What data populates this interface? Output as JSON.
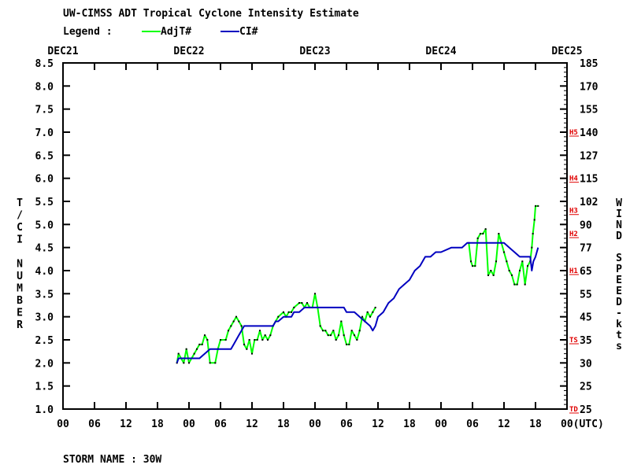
{
  "header": {
    "title": "UW-CIMSS ADT Tropical Cyclone Intensity Estimate",
    "legend_label": "Legend :",
    "storm_name": "STORM NAME : 30W"
  },
  "colors": {
    "background": "#ffffff",
    "axes": "#000000",
    "adjt_series": "#00ff00",
    "ci_series": "#0000c0",
    "category_labels": "#e00000"
  },
  "chart_data": {
    "type": "line",
    "title": "UW-CIMSS ADT Tropical Cyclone Intensity Estimate",
    "ylabel": "T/CI NUMBER",
    "y2label": "WIND SPEED-kts",
    "xlabel": "(UTC)",
    "x_unit": "hours after DEC21 00 UTC",
    "xlim": [
      0,
      96
    ],
    "ylim": [
      1.0,
      8.5
    ],
    "x_ticks": [
      0,
      6,
      12,
      18,
      24,
      30,
      36,
      42,
      48,
      54,
      60,
      66,
      72,
      78,
      84,
      90,
      96
    ],
    "x_tick_labels": [
      "00",
      "06",
      "12",
      "18",
      "00",
      "06",
      "12",
      "18",
      "00",
      "06",
      "12",
      "18",
      "00",
      "06",
      "12",
      "18",
      "00(UTC)"
    ],
    "date_labels": [
      {
        "x": 0,
        "label": "DEC21"
      },
      {
        "x": 24,
        "label": "DEC22"
      },
      {
        "x": 48,
        "label": "DEC23"
      },
      {
        "x": 72,
        "label": "DEC24"
      },
      {
        "x": 96,
        "label": "DEC25"
      }
    ],
    "y_ticks": [
      1.0,
      1.5,
      2.0,
      2.5,
      3.0,
      3.5,
      4.0,
      4.5,
      5.0,
      5.5,
      6.0,
      6.5,
      7.0,
      7.5,
      8.0,
      8.5
    ],
    "y_tick_labels": [
      "1.0",
      "1.5",
      "2.0",
      "2.5",
      "3.0",
      "3.5",
      "4.0",
      "4.5",
      "5.0",
      "5.5",
      "6.0",
      "6.5",
      "7.0",
      "7.5",
      "8.0",
      "8.5"
    ],
    "y2_tick_labels": [
      "25",
      "25",
      "30",
      "35",
      "45",
      "55",
      "65",
      "77",
      "90",
      "102",
      "115",
      "127",
      "140",
      "155",
      "170",
      "185"
    ],
    "category_labels": [
      {
        "y": 1.0,
        "label": "TD"
      },
      {
        "y": 2.5,
        "label": "TS"
      },
      {
        "y": 4.0,
        "label": "H1"
      },
      {
        "y": 4.8,
        "label": "H2"
      },
      {
        "y": 5.3,
        "label": "H3"
      },
      {
        "y": 6.0,
        "label": "H4"
      },
      {
        "y": 7.0,
        "label": "H5"
      }
    ],
    "grid": false,
    "legend_position": "top-left",
    "series": [
      {
        "name": "AdjT#",
        "color": "#00ff00",
        "segments": [
          [
            [
              21.7,
              2.0
            ],
            [
              22.0,
              2.2
            ],
            [
              22.5,
              2.1
            ],
            [
              23.0,
              2.0
            ],
            [
              23.5,
              2.3
            ],
            [
              24.0,
              2.0
            ],
            [
              24.5,
              2.1
            ],
            [
              25.0,
              2.2
            ],
            [
              25.5,
              2.3
            ],
            [
              26.0,
              2.4
            ],
            [
              26.5,
              2.4
            ],
            [
              27.0,
              2.6
            ],
            [
              27.5,
              2.5
            ],
            [
              28.0,
              2.0
            ],
            [
              29.0,
              2.0
            ],
            [
              29.5,
              2.3
            ],
            [
              30.0,
              2.5
            ],
            [
              31.0,
              2.5
            ],
            [
              31.5,
              2.7
            ],
            [
              32.0,
              2.8
            ],
            [
              32.5,
              2.9
            ],
            [
              33.0,
              3.0
            ],
            [
              33.5,
              2.9
            ],
            [
              34.0,
              2.8
            ],
            [
              34.5,
              2.4
            ],
            [
              35.0,
              2.3
            ],
            [
              35.5,
              2.5
            ],
            [
              36.0,
              2.2
            ],
            [
              36.5,
              2.5
            ],
            [
              37.0,
              2.5
            ],
            [
              37.5,
              2.7
            ],
            [
              38.0,
              2.5
            ],
            [
              38.5,
              2.6
            ],
            [
              39.0,
              2.5
            ],
            [
              39.5,
              2.6
            ],
            [
              40.0,
              2.8
            ],
            [
              40.5,
              2.9
            ],
            [
              41.0,
              3.0
            ],
            [
              42.0,
              3.1
            ],
            [
              42.5,
              3.0
            ],
            [
              43.0,
              3.1
            ],
            [
              43.5,
              3.1
            ],
            [
              44.0,
              3.2
            ],
            [
              45.0,
              3.3
            ],
            [
              45.5,
              3.3
            ],
            [
              46.0,
              3.2
            ],
            [
              46.5,
              3.3
            ],
            [
              47.0,
              3.2
            ],
            [
              47.5,
              3.2
            ],
            [
              48.0,
              3.5
            ],
            [
              48.5,
              3.2
            ],
            [
              49.0,
              2.8
            ],
            [
              49.5,
              2.7
            ],
            [
              50.0,
              2.7
            ],
            [
              50.5,
              2.6
            ],
            [
              51.0,
              2.6
            ],
            [
              51.5,
              2.7
            ],
            [
              52.0,
              2.5
            ],
            [
              52.5,
              2.6
            ],
            [
              53.0,
              2.9
            ],
            [
              53.5,
              2.6
            ],
            [
              54.0,
              2.4
            ],
            [
              54.5,
              2.4
            ],
            [
              55.0,
              2.7
            ],
            [
              55.5,
              2.6
            ],
            [
              56.0,
              2.5
            ],
            [
              56.5,
              2.7
            ],
            [
              57.0,
              3.0
            ],
            [
              57.5,
              2.9
            ],
            [
              58.0,
              3.1
            ],
            [
              58.5,
              3.0
            ],
            [
              59.0,
              3.1
            ],
            [
              59.5,
              3.2
            ]
          ],
          [
            [
              77.3,
              4.6
            ],
            [
              77.7,
              4.2
            ],
            [
              78.0,
              4.1
            ],
            [
              78.5,
              4.1
            ],
            [
              79.0,
              4.7
            ],
            [
              79.5,
              4.8
            ],
            [
              80.0,
              4.8
            ],
            [
              80.5,
              4.9
            ],
            [
              81.0,
              3.9
            ],
            [
              81.5,
              4.0
            ],
            [
              82.0,
              3.9
            ],
            [
              82.5,
              4.2
            ],
            [
              83.0,
              4.8
            ],
            [
              83.5,
              4.6
            ],
            [
              84.0,
              4.4
            ],
            [
              84.5,
              4.2
            ],
            [
              85.0,
              4.0
            ],
            [
              85.5,
              3.9
            ],
            [
              86.0,
              3.7
            ],
            [
              86.5,
              3.7
            ],
            [
              87.0,
              4.0
            ],
            [
              87.5,
              4.2
            ],
            [
              88.0,
              3.7
            ],
            [
              88.5,
              4.1
            ],
            [
              89.0,
              4.2
            ],
            [
              89.3,
              4.5
            ],
            [
              89.5,
              4.8
            ],
            [
              89.8,
              5.1
            ],
            [
              90.0,
              5.4
            ],
            [
              90.5,
              5.4
            ]
          ]
        ]
      },
      {
        "name": "CI#",
        "color": "#0000c0",
        "segments": [
          [
            [
              21.7,
              2.0
            ],
            [
              22.0,
              2.1
            ],
            [
              26.0,
              2.1
            ],
            [
              27.0,
              2.2
            ],
            [
              28.0,
              2.3
            ],
            [
              32.0,
              2.3
            ],
            [
              32.5,
              2.4
            ],
            [
              33.0,
              2.5
            ],
            [
              33.5,
              2.6
            ],
            [
              34.0,
              2.7
            ],
            [
              34.5,
              2.8
            ],
            [
              39.0,
              2.8
            ],
            [
              40.0,
              2.8
            ],
            [
              40.5,
              2.9
            ],
            [
              41.0,
              2.9
            ],
            [
              42.0,
              3.0
            ],
            [
              43.5,
              3.0
            ],
            [
              44.0,
              3.1
            ],
            [
              45.0,
              3.1
            ],
            [
              46.0,
              3.2
            ],
            [
              48.0,
              3.2
            ],
            [
              53.5,
              3.2
            ],
            [
              54.0,
              3.1
            ],
            [
              55.5,
              3.1
            ],
            [
              56.5,
              3.0
            ],
            [
              57.5,
              2.9
            ],
            [
              58.5,
              2.8
            ],
            [
              59.0,
              2.7
            ],
            [
              59.5,
              2.8
            ],
            [
              60.0,
              3.0
            ],
            [
              61.0,
              3.1
            ],
            [
              62.0,
              3.3
            ],
            [
              63.0,
              3.4
            ],
            [
              64.0,
              3.6
            ],
            [
              65.0,
              3.7
            ],
            [
              66.0,
              3.8
            ],
            [
              67.0,
              4.0
            ],
            [
              68.0,
              4.1
            ],
            [
              69.0,
              4.3
            ],
            [
              70.0,
              4.3
            ],
            [
              71.0,
              4.4
            ],
            [
              72.0,
              4.4
            ],
            [
              74.0,
              4.5
            ],
            [
              76.0,
              4.5
            ],
            [
              77.0,
              4.6
            ],
            [
              84.0,
              4.6
            ],
            [
              85.0,
              4.5
            ],
            [
              86.0,
              4.4
            ],
            [
              87.0,
              4.3
            ],
            [
              88.0,
              4.3
            ],
            [
              89.0,
              4.3
            ],
            [
              89.3,
              4.0
            ],
            [
              89.6,
              4.2
            ],
            [
              90.0,
              4.3
            ],
            [
              90.5,
              4.5
            ]
          ]
        ]
      }
    ]
  }
}
